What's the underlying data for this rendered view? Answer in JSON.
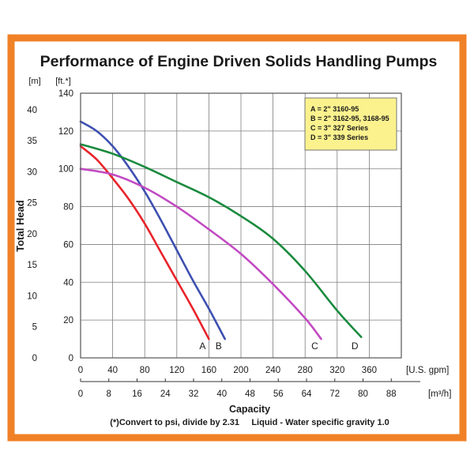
{
  "chart_data": {
    "type": "line",
    "title": "Performance of Engine Driven Solids Handling Pumps",
    "xlabel": "Capacity",
    "ylabel": "Total Head",
    "y_left_unit": "[m]",
    "y_right_unit": "[ft.*]",
    "x_top_unit": "[U.S. gpm]",
    "x_bottom_unit": "[m³/h]",
    "note": "(*)Convert to psi, divide by 2.31     Liquid - Water specific gravity 1.0",
    "x_ticks_gpm": [
      "0",
      "40",
      "80",
      "120",
      "160",
      "200",
      "240",
      "280",
      "320",
      "360"
    ],
    "x_ticks_m3h": [
      "0",
      "8",
      "16",
      "24",
      "32",
      "40",
      "48",
      "56",
      "64",
      "72",
      "80",
      "88"
    ],
    "y_ticks_ft": [
      "0",
      "20",
      "40",
      "60",
      "80",
      "100",
      "120",
      "140"
    ],
    "y_ticks_m": [
      "0",
      "5",
      "10",
      "15",
      "20",
      "25",
      "30",
      "35",
      "40"
    ],
    "xlim_gpm": [
      0,
      400
    ],
    "ylim_ft": [
      0,
      140
    ],
    "grid": true,
    "legend_position": "top-right",
    "legend": [
      "A = 2\" 3160-95",
      "B = 2\" 3162-95, 3168-95",
      "C = 3\" 327 Series",
      "D = 3\" 339 Series"
    ],
    "series": [
      {
        "name": "A",
        "color": "#e8232a",
        "x": [
          0,
          20,
          40,
          60,
          80,
          100,
          120,
          140,
          160
        ],
        "y": [
          112,
          105,
          95,
          84,
          71,
          56,
          41,
          26,
          10
        ]
      },
      {
        "name": "B",
        "color": "#3d4fb0",
        "x": [
          0,
          20,
          40,
          60,
          80,
          100,
          120,
          140,
          160,
          180
        ],
        "y": [
          125,
          120,
          112,
          101,
          88,
          73,
          57,
          41,
          26,
          10
        ]
      },
      {
        "name": "C",
        "color": "#c24bc2",
        "x": [
          0,
          40,
          80,
          120,
          160,
          200,
          240,
          280,
          300
        ],
        "y": [
          100,
          97,
          90,
          80,
          68,
          55,
          39,
          21,
          10
        ]
      },
      {
        "name": "D",
        "color": "#1a8a3e",
        "x": [
          0,
          40,
          80,
          120,
          160,
          200,
          240,
          280,
          320,
          350
        ],
        "y": [
          113,
          108,
          101,
          93,
          85,
          75,
          63,
          46,
          25,
          11
        ]
      }
    ]
  },
  "colors": {
    "border": "#f08126",
    "grid": "#7f7f7f",
    "legend_bg": "#fbf28e",
    "text": "#1a1a1a"
  }
}
